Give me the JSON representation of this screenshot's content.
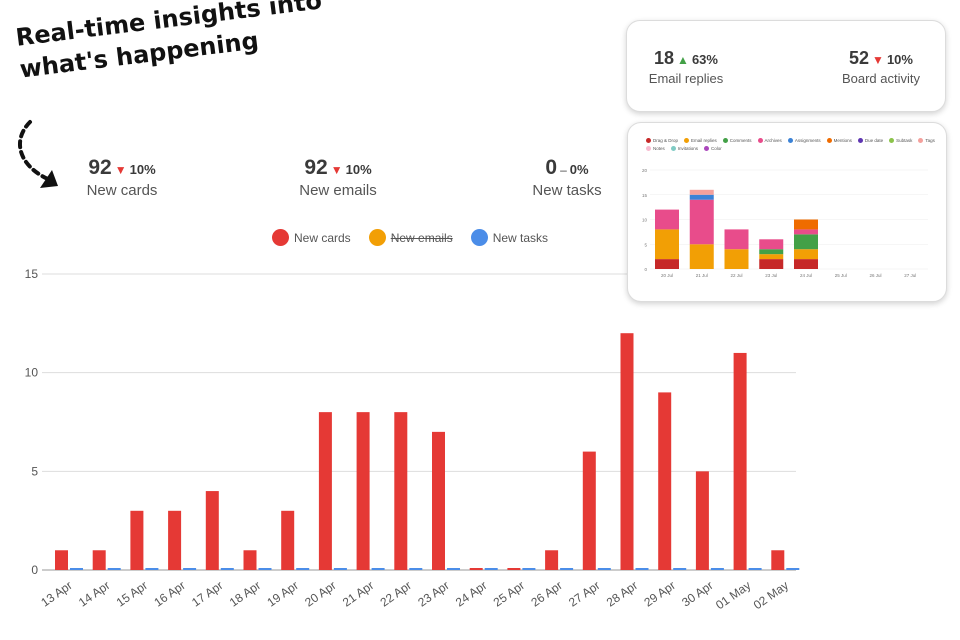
{
  "headline": {
    "line1": "Real-time insights into",
    "line2": "what's happening"
  },
  "kpis": [
    {
      "value": "92",
      "trend": "down",
      "change": "10%",
      "label": "New cards"
    },
    {
      "value": "92",
      "trend": "down",
      "change": "10%",
      "label": "New emails"
    },
    {
      "value": "0",
      "trend": "flat",
      "change": "0%",
      "label": "New tasks"
    }
  ],
  "activity_card": [
    {
      "value": "18",
      "trend": "up",
      "change": "63%",
      "label": "Email replies"
    },
    {
      "value": "52",
      "trend": "down",
      "change": "10%",
      "label": "Board activity"
    }
  ],
  "colors": {
    "red": "#e53935",
    "orange": "#f29f05",
    "blue": "#4b8de8"
  },
  "chart_data": [
    {
      "type": "bar",
      "title": "",
      "xlabel": "",
      "ylabel": "",
      "ylim": [
        0,
        15
      ],
      "yticks": [
        "0",
        "5",
        "10",
        "15"
      ],
      "legend_position": "top",
      "legend": [
        {
          "name": "New cards",
          "color": "#e53935",
          "hidden": false
        },
        {
          "name": "New emails",
          "color": "#f29f05",
          "hidden": true
        },
        {
          "name": "New tasks",
          "color": "#4b8de8",
          "hidden": false
        }
      ],
      "categories": [
        "13 Apr",
        "14 Apr",
        "15 Apr",
        "16 Apr",
        "17 Apr",
        "18 Apr",
        "19 Apr",
        "20 Apr",
        "21 Apr",
        "22 Apr",
        "23 Apr",
        "24 Apr",
        "25 Apr",
        "26 Apr",
        "27 Apr",
        "28 Apr",
        "29 Apr",
        "30 Apr",
        "01 May",
        "02 May"
      ],
      "series": [
        {
          "name": "New cards",
          "color": "#e53935",
          "values": [
            1,
            1,
            3,
            3,
            4,
            1,
            3,
            8,
            8,
            8,
            7,
            0,
            0,
            1,
            6,
            12,
            9,
            5,
            11,
            1
          ]
        },
        {
          "name": "New tasks",
          "color": "#4b8de8",
          "values": [
            0,
            0,
            0,
            0,
            0,
            0,
            0,
            0,
            0,
            0,
            0,
            0,
            0,
            0,
            0,
            0,
            0,
            0,
            0,
            0
          ]
        }
      ]
    },
    {
      "type": "bar",
      "stacked": true,
      "title": "",
      "ylim": [
        0,
        20
      ],
      "yticks": [
        "0",
        "5",
        "10",
        "15",
        "20"
      ],
      "legend_position": "top",
      "categories": [
        "20 Jul",
        "21 Jul",
        "22 Jul",
        "23 Jul",
        "24 Jul",
        "25 Jul",
        "26 Jul",
        "27 Jul"
      ],
      "series": [
        {
          "name": "Drag & Drop",
          "color": "#c62828",
          "values": [
            2,
            0,
            0,
            2,
            2,
            0,
            0,
            0
          ]
        },
        {
          "name": "Email replies",
          "color": "#f29f05",
          "values": [
            6,
            5,
            4,
            1,
            2,
            0,
            0,
            0
          ]
        },
        {
          "name": "Comments",
          "color": "#43a047",
          "values": [
            0,
            0,
            0,
            1,
            3,
            0,
            0,
            0
          ]
        },
        {
          "name": "Archives",
          "color": "#e84c8b",
          "values": [
            4,
            9,
            4,
            2,
            1,
            0,
            0,
            0
          ]
        },
        {
          "name": "Assignments",
          "color": "#3b82d6",
          "values": [
            0,
            1,
            0,
            0,
            0,
            0,
            0,
            0
          ]
        },
        {
          "name": "Mentions",
          "color": "#ef6c00",
          "values": [
            0,
            0,
            0,
            0,
            2,
            0,
            0,
            0
          ]
        },
        {
          "name": "Due date",
          "color": "#5e35b1",
          "values": [
            0,
            0,
            0,
            0,
            0,
            0,
            0,
            0
          ]
        },
        {
          "name": "Subtask",
          "color": "#8bc34a",
          "values": [
            0,
            0,
            0,
            0,
            0,
            0,
            0,
            0
          ]
        },
        {
          "name": "Tags",
          "color": "#f4a09c",
          "values": [
            0,
            1,
            0,
            0,
            0,
            0,
            0,
            0
          ]
        },
        {
          "name": "Notes",
          "color": "#f8bbd0",
          "values": [
            0,
            0,
            0,
            0,
            0,
            0,
            0,
            0
          ]
        },
        {
          "name": "Invitations",
          "color": "#80cbc4",
          "values": [
            0,
            0,
            0,
            0,
            0,
            0,
            0,
            0
          ]
        },
        {
          "name": "Color",
          "color": "#ab47bc",
          "values": [
            0,
            0,
            0,
            0,
            0,
            0,
            0,
            0
          ]
        }
      ]
    }
  ]
}
